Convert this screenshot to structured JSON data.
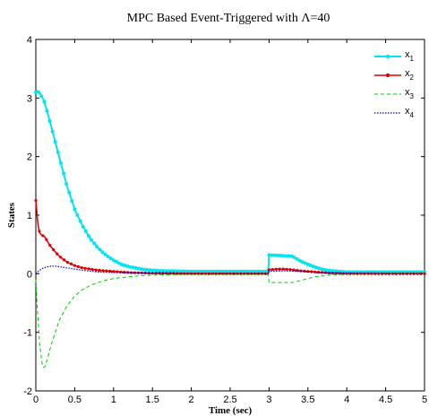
{
  "chart_data": {
    "type": "line",
    "title": "MPC Based Event-Triggered with  Λ=40",
    "xlabel": "Time (sec)",
    "ylabel": "States",
    "xlim": [
      0,
      5
    ],
    "ylim": [
      -2,
      4
    ],
    "xticks": [
      "0",
      "0.5",
      "1",
      "1.5",
      "2",
      "2.5",
      "3",
      "3.5",
      "4",
      "4.5",
      "5"
    ],
    "yticks": [
      "-2",
      "-1",
      "0",
      "1",
      "2",
      "3",
      "4"
    ],
    "grid": false,
    "legend": "top-right",
    "series": [
      {
        "name": "x",
        "subscript": "1",
        "color": "#00e5ee",
        "style": "solid-marker",
        "x": [
          0,
          0.02,
          0.05,
          0.1,
          0.15,
          0.2,
          0.3,
          0.4,
          0.5,
          0.6,
          0.7,
          0.8,
          0.9,
          1.0,
          1.1,
          1.2,
          1.4,
          1.6,
          2.0,
          2.5,
          2.99,
          3.0,
          3.3,
          3.4,
          3.5,
          3.6,
          3.7,
          3.8,
          4.0,
          4.5,
          5.0
        ],
        "y": [
          3.1,
          3.12,
          3.08,
          2.97,
          2.75,
          2.5,
          2.0,
          1.5,
          1.1,
          0.82,
          0.6,
          0.44,
          0.32,
          0.23,
          0.16,
          0.12,
          0.07,
          0.05,
          0.04,
          0.04,
          0.04,
          0.32,
          0.3,
          0.22,
          0.16,
          0.11,
          0.07,
          0.05,
          0.03,
          0.03,
          0.03
        ]
      },
      {
        "name": "x",
        "subscript": "2",
        "color": "#e00000",
        "style": "solid-dot",
        "x": [
          0,
          0.01,
          0.02,
          0.03,
          0.05,
          0.08,
          0.1,
          0.12,
          0.15,
          0.2,
          0.3,
          0.4,
          0.5,
          0.6,
          0.8,
          1.0,
          1.2,
          1.5,
          2.0,
          2.5,
          2.99,
          3.0,
          3.1,
          3.2,
          3.3,
          3.4,
          3.6,
          3.8,
          4.0,
          4.5,
          5.0
        ],
        "y": [
          1.25,
          1.1,
          0.95,
          0.82,
          0.7,
          0.65,
          0.65,
          0.62,
          0.55,
          0.45,
          0.3,
          0.2,
          0.14,
          0.1,
          0.06,
          0.04,
          0.02,
          0.01,
          0.0,
          0.0,
          0.0,
          0.07,
          0.08,
          0.08,
          0.07,
          0.05,
          0.03,
          0.01,
          0.0,
          0.0,
          0.0
        ]
      },
      {
        "name": "x",
        "subscript": "3",
        "color": "#00cc00",
        "style": "dashed",
        "x": [
          0,
          0.02,
          0.05,
          0.08,
          0.1,
          0.12,
          0.15,
          0.2,
          0.3,
          0.4,
          0.5,
          0.6,
          0.7,
          0.8,
          0.9,
          1.0,
          1.2,
          1.4,
          1.6,
          2.0,
          2.5,
          2.99,
          3.0,
          3.3,
          3.4,
          3.5,
          3.6,
          3.8,
          4.0,
          4.5,
          5.0
        ],
        "y": [
          -0.1,
          -0.6,
          -1.2,
          -1.52,
          -1.6,
          -1.58,
          -1.45,
          -1.2,
          -0.8,
          -0.55,
          -0.38,
          -0.27,
          -0.2,
          -0.15,
          -0.11,
          -0.08,
          -0.05,
          -0.03,
          -0.02,
          -0.01,
          -0.01,
          -0.01,
          -0.15,
          -0.15,
          -0.12,
          -0.08,
          -0.05,
          -0.02,
          -0.01,
          0.0,
          0.0
        ]
      },
      {
        "name": "x",
        "subscript": "4",
        "color": "#0000cc",
        "style": "dotted",
        "x": [
          0,
          0.05,
          0.1,
          0.15,
          0.2,
          0.25,
          0.3,
          0.4,
          0.5,
          0.6,
          0.8,
          1.0,
          1.5,
          2.0,
          2.5,
          2.99,
          3.0,
          3.2,
          3.4,
          3.6,
          4.0,
          4.5,
          5.0
        ],
        "y": [
          0.0,
          0.06,
          0.1,
          0.12,
          0.13,
          0.13,
          0.12,
          0.1,
          0.08,
          0.06,
          0.03,
          0.02,
          0.01,
          0.0,
          0.0,
          0.0,
          0.04,
          0.05,
          0.04,
          0.02,
          0.01,
          0.0,
          0.0
        ]
      }
    ]
  }
}
